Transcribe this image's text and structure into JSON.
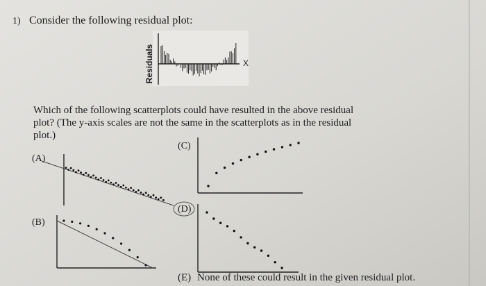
{
  "question": {
    "number": "1)",
    "prompt": "Consider the following residual plot:",
    "residual_plot": {
      "y_label": "Residuals",
      "x_label": "X"
    },
    "question_text": [
      "Which of the following scatterplots could have resulted in the above residual",
      "plot? (The y-axis scales are not the same in the scatterplots as in the residual",
      "plot.)"
    ],
    "options": [
      {
        "label": "(A)"
      },
      {
        "label": "(B)"
      },
      {
        "label": "(C)"
      },
      {
        "label": "(D)"
      },
      {
        "label": "(E)",
        "text": "None of these could result in the given residual plot."
      }
    ]
  }
}
